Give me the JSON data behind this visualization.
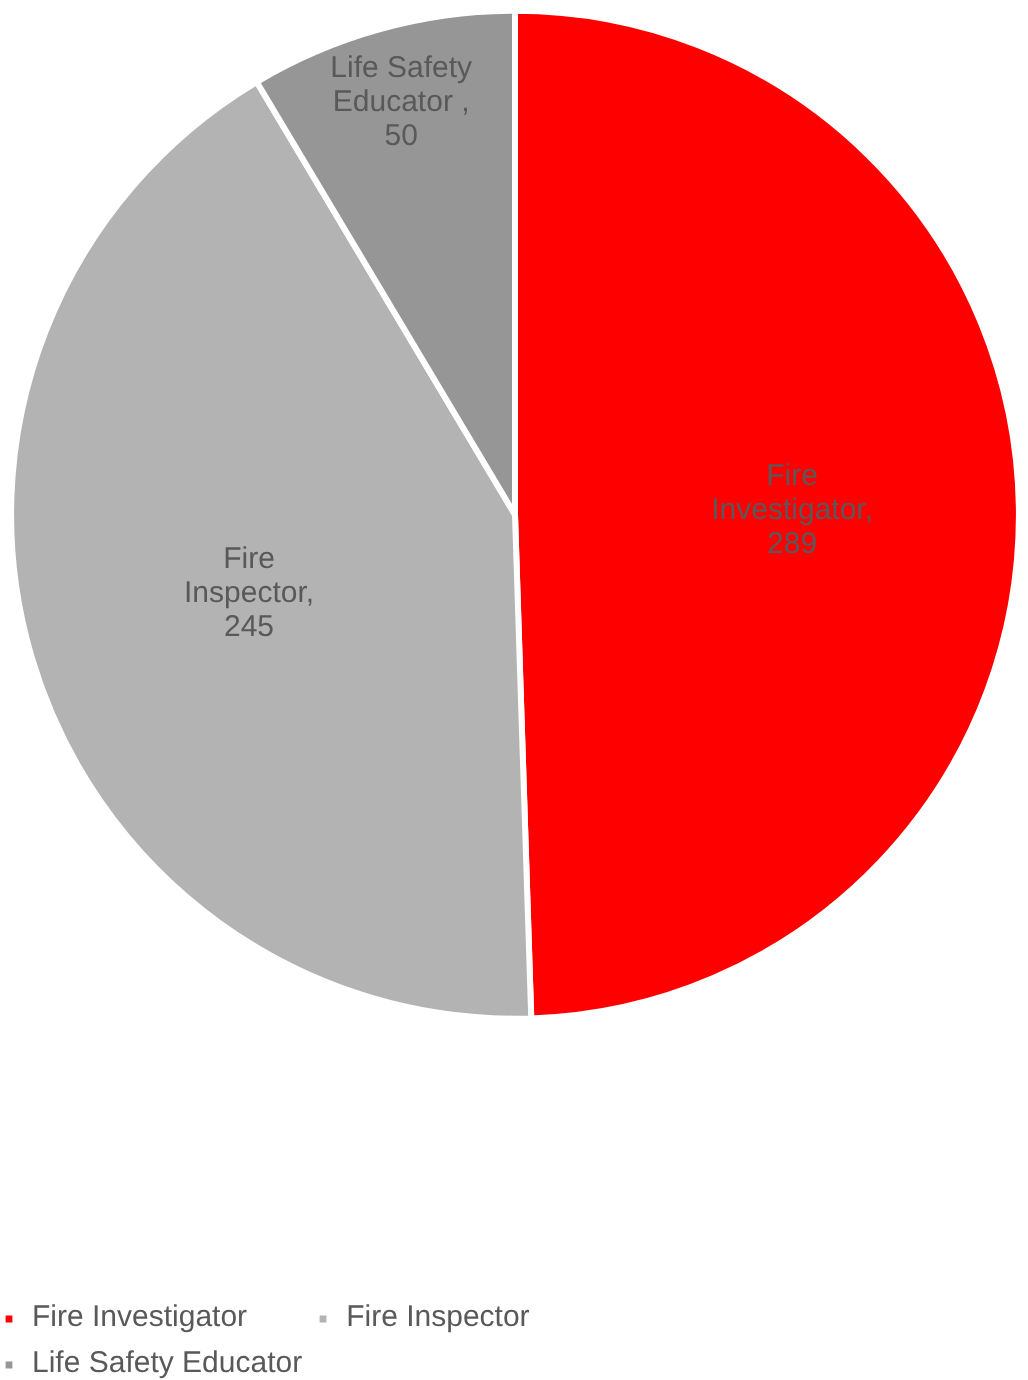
{
  "chart_data": {
    "type": "pie",
    "categories": [
      "Fire Investigator",
      "Fire Inspector",
      "Life Safety Educator"
    ],
    "values": [
      289,
      245,
      50
    ],
    "colors": [
      "#ff0000",
      "#b3b3b3",
      "#969696"
    ],
    "value_labels": [
      "Fire\nInvestigator,\n289",
      "Fire\nInspector,\n245",
      "Life Safety\nEducator ,\n50"
    ],
    "legend": "bottom"
  }
}
